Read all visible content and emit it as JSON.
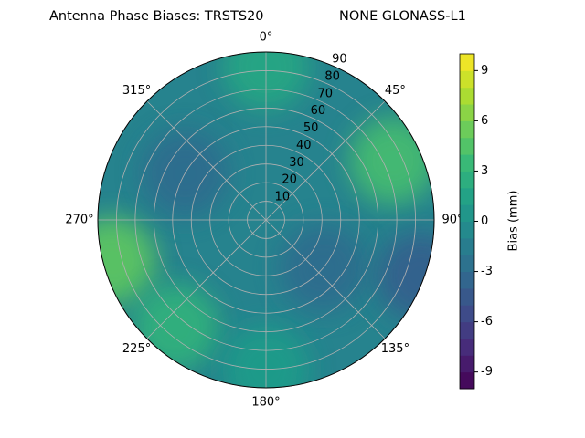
{
  "chart_data": {
    "type": "polar-contour",
    "title": "Antenna Phase Biases: TRSTS20",
    "subtitle": "NONE GLONASS-L1",
    "colorbar_label": "Bias (mm)",
    "clim": [
      -10,
      10
    ],
    "cticks": [
      -9,
      -6,
      -3,
      0,
      3,
      6,
      9
    ],
    "background_value": -1,
    "rlim": [
      0,
      90
    ],
    "rticks": [
      10,
      20,
      30,
      40,
      50,
      60,
      70,
      80,
      90
    ],
    "thetaticks": [
      {
        "value": 0,
        "label": "0°"
      },
      {
        "value": 45,
        "label": "45°"
      },
      {
        "value": 90,
        "label": "90°"
      },
      {
        "value": 135,
        "label": "135°"
      },
      {
        "value": 180,
        "label": "180°"
      },
      {
        "value": 225,
        "label": "225°"
      },
      {
        "value": 270,
        "label": "270°"
      },
      {
        "value": 315,
        "label": "315°"
      }
    ],
    "grid": true,
    "regions": [
      {
        "azimuth": 65,
        "radius": 75,
        "value": 4
      },
      {
        "azimuth": 255,
        "radius": 85,
        "value": 5
      },
      {
        "azimuth": 220,
        "radius": 75,
        "value": 3
      },
      {
        "azimuth": 300,
        "radius": 50,
        "value": -3
      },
      {
        "azimuth": 130,
        "radius": 40,
        "value": -3
      },
      {
        "azimuth": 110,
        "radius": 88,
        "value": -4
      },
      {
        "azimuth": 0,
        "radius": 82,
        "value": 2
      },
      {
        "azimuth": 180,
        "radius": 80,
        "value": 1
      }
    ]
  }
}
